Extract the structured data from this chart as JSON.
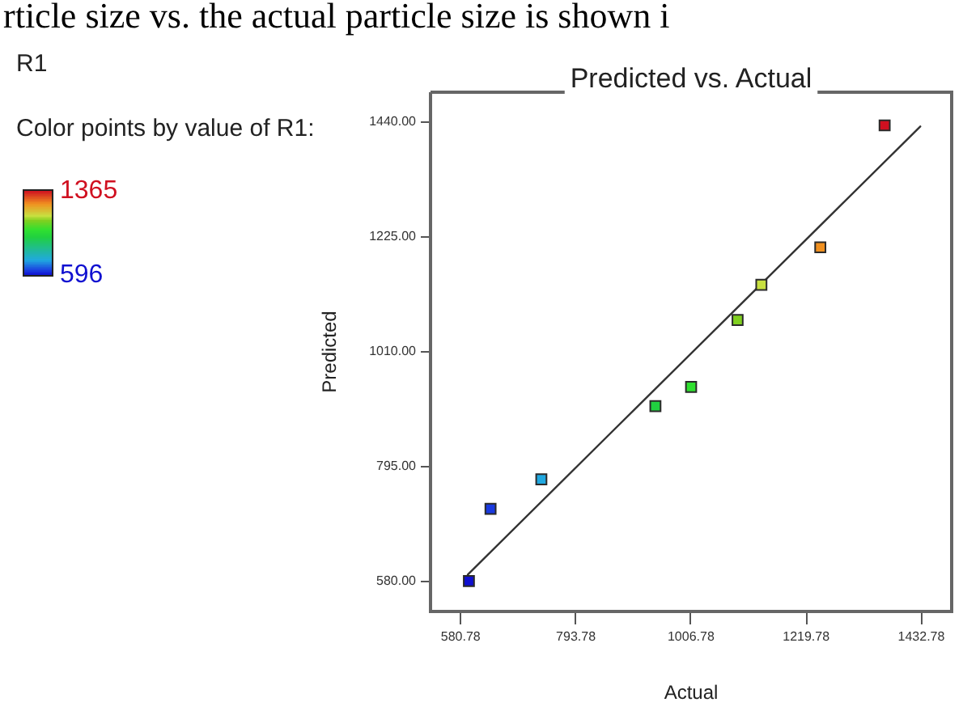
{
  "chart_data": {
    "type": "scatter",
    "title": "Predicted vs. Actual",
    "xlabel": "Actual",
    "ylabel": "Predicted",
    "clabel": "Color points by value of R1:",
    "annotations": [
      "rticle size vs. the actual particle size is shown i",
      "R1"
    ],
    "xlim": [
      525,
      1489
    ],
    "xticks": [
      580.78,
      793.78,
      1006.78,
      1219.78,
      1432.78
    ],
    "ylim": [
      524,
      1495
    ],
    "yticks": [
      {
        "value": 580,
        "label": "580.00"
      },
      {
        "value": 795,
        "label": "795.00"
      },
      {
        "value": 1010,
        "label": "1010.00"
      },
      {
        "value": 1225,
        "label": "1225.00"
      },
      {
        "value": 1440,
        "label": "1440.00"
      }
    ],
    "clim": [
      596,
      1365
    ],
    "cticks": [
      596,
      1365
    ],
    "legend": false,
    "series": [
      {
        "marker": "square",
        "x": [
          596,
          636,
          730,
          941,
          1007,
          1093,
          1137,
          1246,
          1365
        ],
        "values": [
          581,
          716,
          771,
          908,
          944,
          1069,
          1135,
          1205,
          1433
        ],
        "cvalues": [
          596,
          636,
          730,
          941,
          1007,
          1093,
          1137,
          1246,
          1365
        ],
        "colors": [
          "#1010d0",
          "#1a3ae0",
          "#20a8e0",
          "#20d040",
          "#30e030",
          "#80d020",
          "#c8e040",
          "#f09020",
          "#d01020"
        ]
      },
      {
        "type": "line",
        "marker": "none",
        "color": "#333333",
        "x": [
          594,
          1431
        ],
        "values": [
          593,
          1431
        ]
      }
    ]
  }
}
